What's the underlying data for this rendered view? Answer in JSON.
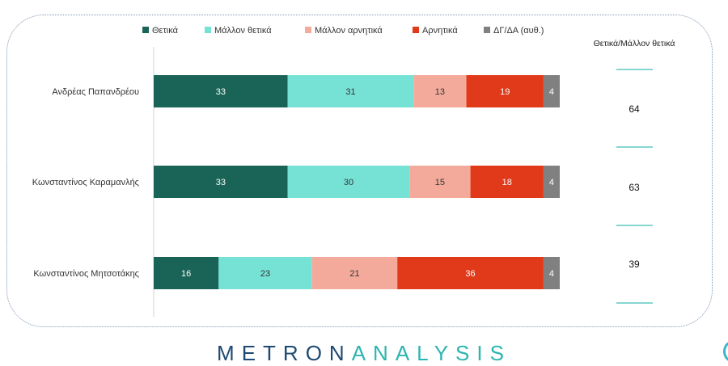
{
  "chart_data": {
    "type": "bar",
    "stacked": true,
    "orientation": "horizontal",
    "categories": [
      "Ανδρέας Παπανδρέου",
      "Κωνσταντίνος Καραμανλής",
      "Κωνσταντίνος Μητσοτάκης"
    ],
    "series": [
      {
        "name": "Θετικά",
        "color": "#1a6457",
        "values": [
          33,
          33,
          16
        ]
      },
      {
        "name": "Μάλλον θετικά",
        "color": "#76e2d6",
        "values": [
          31,
          30,
          23
        ]
      },
      {
        "name": "Μάλλον αρνητικά",
        "color": "#f3aa9a",
        "values": [
          13,
          15,
          21
        ]
      },
      {
        "name": "Αρνητικά",
        "color": "#e03a1a",
        "values": [
          19,
          18,
          36
        ]
      },
      {
        "name": "ΔΓ/ΔΑ (αυθ.)",
        "color": "#808080",
        "values": [
          4,
          4,
          4
        ]
      }
    ],
    "xlim": [
      0,
      100
    ],
    "legend": "top",
    "side_column": {
      "title": "Θετικά/Μάλλον θετικά",
      "values": [
        "64",
        "63",
        "39"
      ]
    }
  },
  "branding": {
    "logo_left": "METRON",
    "logo_right": "ANALYSIS"
  }
}
